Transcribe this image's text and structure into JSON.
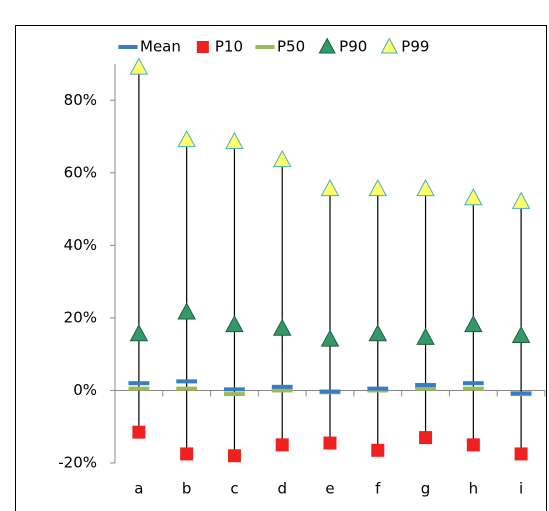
{
  "chart_data": {
    "type": "percentile",
    "categories": [
      "a",
      "b",
      "c",
      "d",
      "e",
      "f",
      "g",
      "h",
      "i"
    ],
    "series": [
      {
        "name": "Mean",
        "color": "#3a7cc3",
        "marker": "dash",
        "values": [
          2,
          2.5,
          0.3,
          1,
          -0.3,
          0.5,
          1.5,
          2,
          -0.8
        ]
      },
      {
        "name": "P10",
        "color": "#ee2020",
        "marker": "square",
        "values": [
          -11.5,
          -17.5,
          -18,
          -15,
          -14.5,
          -16.5,
          -13,
          -15,
          -17.5
        ]
      },
      {
        "name": "P50",
        "color": "#9bbb59",
        "marker": "dash",
        "values": [
          0.5,
          0.5,
          -1,
          0,
          -0.5,
          0,
          0.5,
          0.5,
          -1
        ]
      },
      {
        "name": "P90",
        "color": "#339966",
        "marker": "triangle",
        "values": [
          15.5,
          21.5,
          18,
          17,
          14,
          15.5,
          14.5,
          18,
          15
        ]
      },
      {
        "name": "P99",
        "color": "#ffff66",
        "marker": "triangle",
        "values": [
          89,
          69,
          68.5,
          63.5,
          55.5,
          55.5,
          55.5,
          53,
          52
        ]
      }
    ],
    "ylim": [
      -20,
      90
    ],
    "yticks": [
      {
        "value": -20,
        "label": "-20%"
      },
      {
        "value": 0,
        "label": "0%"
      },
      {
        "value": 20,
        "label": "20%"
      },
      {
        "value": 40,
        "label": "40%"
      },
      {
        "value": 60,
        "label": "60%"
      },
      {
        "value": 80,
        "label": "80%"
      }
    ],
    "legend": "top"
  }
}
